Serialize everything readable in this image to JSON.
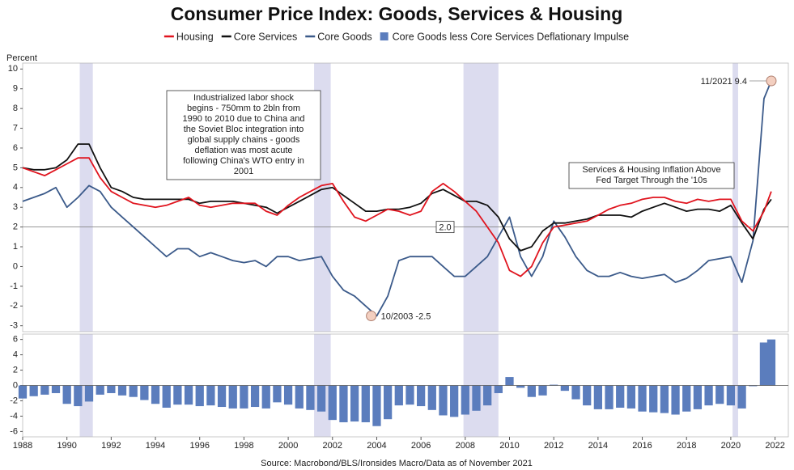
{
  "chart_data": [
    {
      "type": "line",
      "title": "Consumer Price Index: Goods, Services & Housing",
      "y_label": "Percent",
      "x": [
        1988,
        1988.5,
        1989,
        1989.5,
        1990,
        1990.5,
        1991,
        1991.5,
        1992,
        1992.5,
        1993,
        1993.5,
        1994,
        1994.5,
        1995,
        1995.5,
        1996,
        1996.5,
        1997,
        1997.5,
        1998,
        1998.5,
        1999,
        1999.5,
        2000,
        2000.5,
        2001,
        2001.5,
        2002,
        2002.5,
        2003,
        2003.5,
        2004,
        2004.5,
        2005,
        2005.5,
        2006,
        2006.5,
        2007,
        2007.5,
        2008,
        2008.5,
        2009,
        2009.5,
        2010,
        2010.5,
        2011,
        2011.5,
        2012,
        2012.5,
        2013,
        2013.5,
        2014,
        2014.5,
        2015,
        2015.5,
        2016,
        2016.5,
        2017,
        2017.5,
        2018,
        2018.5,
        2019,
        2019.5,
        2020,
        2020.5,
        2021,
        2021.5,
        2021.83
      ],
      "xlim": [
        1988,
        2022.6
      ],
      "ylim": [
        -3.3,
        10.3
      ],
      "yticks": [
        -3,
        -2,
        -1,
        0,
        1,
        2,
        3,
        4,
        5,
        6,
        7,
        8,
        9,
        10
      ],
      "reference_line": {
        "value": 2,
        "label": "2.0"
      },
      "shaded_periods": [
        [
          1990.58,
          1991.17
        ],
        [
          2001.17,
          2001.92
        ],
        [
          2007.92,
          2009.5
        ],
        [
          2020.08,
          2020.33
        ]
      ],
      "series": [
        {
          "name": "Housing",
          "color": "#e0141e",
          "values": [
            5.0,
            4.8,
            4.6,
            4.9,
            5.2,
            5.5,
            5.5,
            4.5,
            3.8,
            3.5,
            3.2,
            3.1,
            3.0,
            3.1,
            3.3,
            3.5,
            3.1,
            3.0,
            3.1,
            3.2,
            3.2,
            3.2,
            2.8,
            2.6,
            3.1,
            3.5,
            3.8,
            4.1,
            4.2,
            3.3,
            2.5,
            2.3,
            2.6,
            2.9,
            2.8,
            2.6,
            2.8,
            3.8,
            4.2,
            3.8,
            3.3,
            2.8,
            2.0,
            1.2,
            -0.2,
            -0.5,
            0.0,
            1.2,
            2.0,
            2.1,
            2.2,
            2.3,
            2.6,
            2.9,
            3.1,
            3.2,
            3.4,
            3.5,
            3.5,
            3.3,
            3.2,
            3.4,
            3.3,
            3.4,
            3.4,
            2.3,
            1.8,
            2.8,
            3.8
          ]
        },
        {
          "name": "Core Services",
          "color": "#111111",
          "values": [
            5.0,
            4.9,
            4.9,
            5.0,
            5.4,
            6.2,
            6.2,
            5.0,
            4.0,
            3.8,
            3.5,
            3.4,
            3.4,
            3.4,
            3.4,
            3.4,
            3.2,
            3.3,
            3.3,
            3.3,
            3.2,
            3.1,
            3.0,
            2.7,
            3.0,
            3.3,
            3.6,
            3.9,
            4.0,
            3.6,
            3.2,
            2.8,
            2.8,
            2.9,
            2.9,
            3.0,
            3.2,
            3.7,
            3.9,
            3.6,
            3.3,
            3.3,
            3.1,
            2.5,
            1.4,
            0.8,
            1.0,
            1.8,
            2.2,
            2.2,
            2.3,
            2.4,
            2.6,
            2.6,
            2.6,
            2.5,
            2.8,
            3.0,
            3.2,
            3.0,
            2.8,
            2.9,
            2.9,
            2.8,
            3.1,
            2.2,
            1.4,
            2.9,
            3.4
          ]
        },
        {
          "name": "Core Goods",
          "color": "#3b5a8a",
          "values": [
            3.3,
            3.5,
            3.7,
            4.0,
            3.0,
            3.5,
            4.1,
            3.8,
            3.0,
            2.5,
            2.0,
            1.5,
            1.0,
            0.5,
            0.9,
            0.9,
            0.5,
            0.7,
            0.5,
            0.3,
            0.2,
            0.3,
            0.0,
            0.5,
            0.5,
            0.3,
            0.4,
            0.5,
            -0.5,
            -1.2,
            -1.5,
            -2.0,
            -2.5,
            -1.5,
            0.3,
            0.5,
            0.5,
            0.5,
            0.0,
            -0.5,
            -0.5,
            0.0,
            0.5,
            1.5,
            2.5,
            0.5,
            -0.5,
            0.5,
            2.3,
            1.5,
            0.5,
            -0.2,
            -0.5,
            -0.5,
            -0.3,
            -0.5,
            -0.6,
            -0.5,
            -0.4,
            -0.8,
            -0.6,
            -0.2,
            0.3,
            0.4,
            0.5,
            -0.8,
            1.3,
            8.5,
            9.4
          ]
        }
      ],
      "annotations": [
        {
          "label": "11/2021 9.4",
          "x": 2021.83,
          "y": 9.4
        },
        {
          "label": "10/2003 -2.5",
          "x": 2003.75,
          "y": -2.5
        }
      ],
      "text_boxes": [
        {
          "lines": [
            "Industrialized labor shock",
            "begins - 750mm to 2bln from",
            "1990 to 2010 due to China and",
            "the Soviet Bloc integration into",
            "global supply chains - goods",
            "deflation was most acute",
            "following China's WTO entry in",
            "2001"
          ]
        },
        {
          "lines": [
            "Services & Housing Inflation Above",
            "Fed Target Through the '10s"
          ]
        }
      ],
      "source": "Source: Macrobond/BLS/Ironsides Macro/Data as of November 2021"
    },
    {
      "type": "bar",
      "x": [
        1988,
        1988.5,
        1989,
        1989.5,
        1990,
        1990.5,
        1991,
        1991.5,
        1992,
        1992.5,
        1993,
        1993.5,
        1994,
        1994.5,
        1995,
        1995.5,
        1996,
        1996.5,
        1997,
        1997.5,
        1998,
        1998.5,
        1999,
        1999.5,
        2000,
        2000.5,
        2001,
        2001.5,
        2002,
        2002.5,
        2003,
        2003.5,
        2004,
        2004.5,
        2005,
        2005.5,
        2006,
        2006.5,
        2007,
        2007.5,
        2008,
        2008.5,
        2009,
        2009.5,
        2010,
        2010.5,
        2011,
        2011.5,
        2012,
        2012.5,
        2013,
        2013.5,
        2014,
        2014.5,
        2015,
        2015.5,
        2016,
        2016.5,
        2017,
        2017.5,
        2018,
        2018.5,
        2019,
        2019.5,
        2020,
        2020.5,
        2021,
        2021.5,
        2021.83
      ],
      "xlim": [
        1988,
        2022.6
      ],
      "ylim": [
        -6.7,
        6.7
      ],
      "yticks": [
        -6,
        -4,
        -2,
        0,
        2,
        4,
        6
      ],
      "xticks": [
        1988,
        1990,
        1992,
        1994,
        1996,
        1998,
        2000,
        2002,
        2004,
        2006,
        2008,
        2010,
        2012,
        2014,
        2016,
        2018,
        2020,
        2022
      ],
      "shaded_periods": [
        [
          1990.58,
          1991.17
        ],
        [
          2001.17,
          2001.92
        ],
        [
          2007.92,
          2009.5
        ],
        [
          2020.08,
          2020.33
        ]
      ],
      "series": [
        {
          "name": "Core Goods less Core Services Deflationary Impulse",
          "color": "#5b7dbd",
          "values": [
            -1.7,
            -1.4,
            -1.2,
            -1.0,
            -2.4,
            -2.7,
            -2.1,
            -1.2,
            -1.0,
            -1.3,
            -1.5,
            -1.9,
            -2.4,
            -2.9,
            -2.5,
            -2.5,
            -2.7,
            -2.6,
            -2.8,
            -3.0,
            -3.0,
            -2.8,
            -3.0,
            -2.2,
            -2.5,
            -3.0,
            -3.2,
            -3.4,
            -4.5,
            -4.8,
            -4.7,
            -4.8,
            -5.3,
            -4.4,
            -2.6,
            -2.5,
            -2.7,
            -3.2,
            -3.9,
            -4.1,
            -3.8,
            -3.3,
            -2.6,
            -1.0,
            1.1,
            -0.3,
            -1.5,
            -1.3,
            0.1,
            -0.7,
            -1.8,
            -2.6,
            -3.1,
            -3.1,
            -2.9,
            -3.0,
            -3.4,
            -3.5,
            -3.6,
            -3.8,
            -3.4,
            -3.1,
            -2.6,
            -2.4,
            -2.6,
            -3.0,
            -0.1,
            5.6,
            6.0
          ]
        }
      ]
    }
  ]
}
